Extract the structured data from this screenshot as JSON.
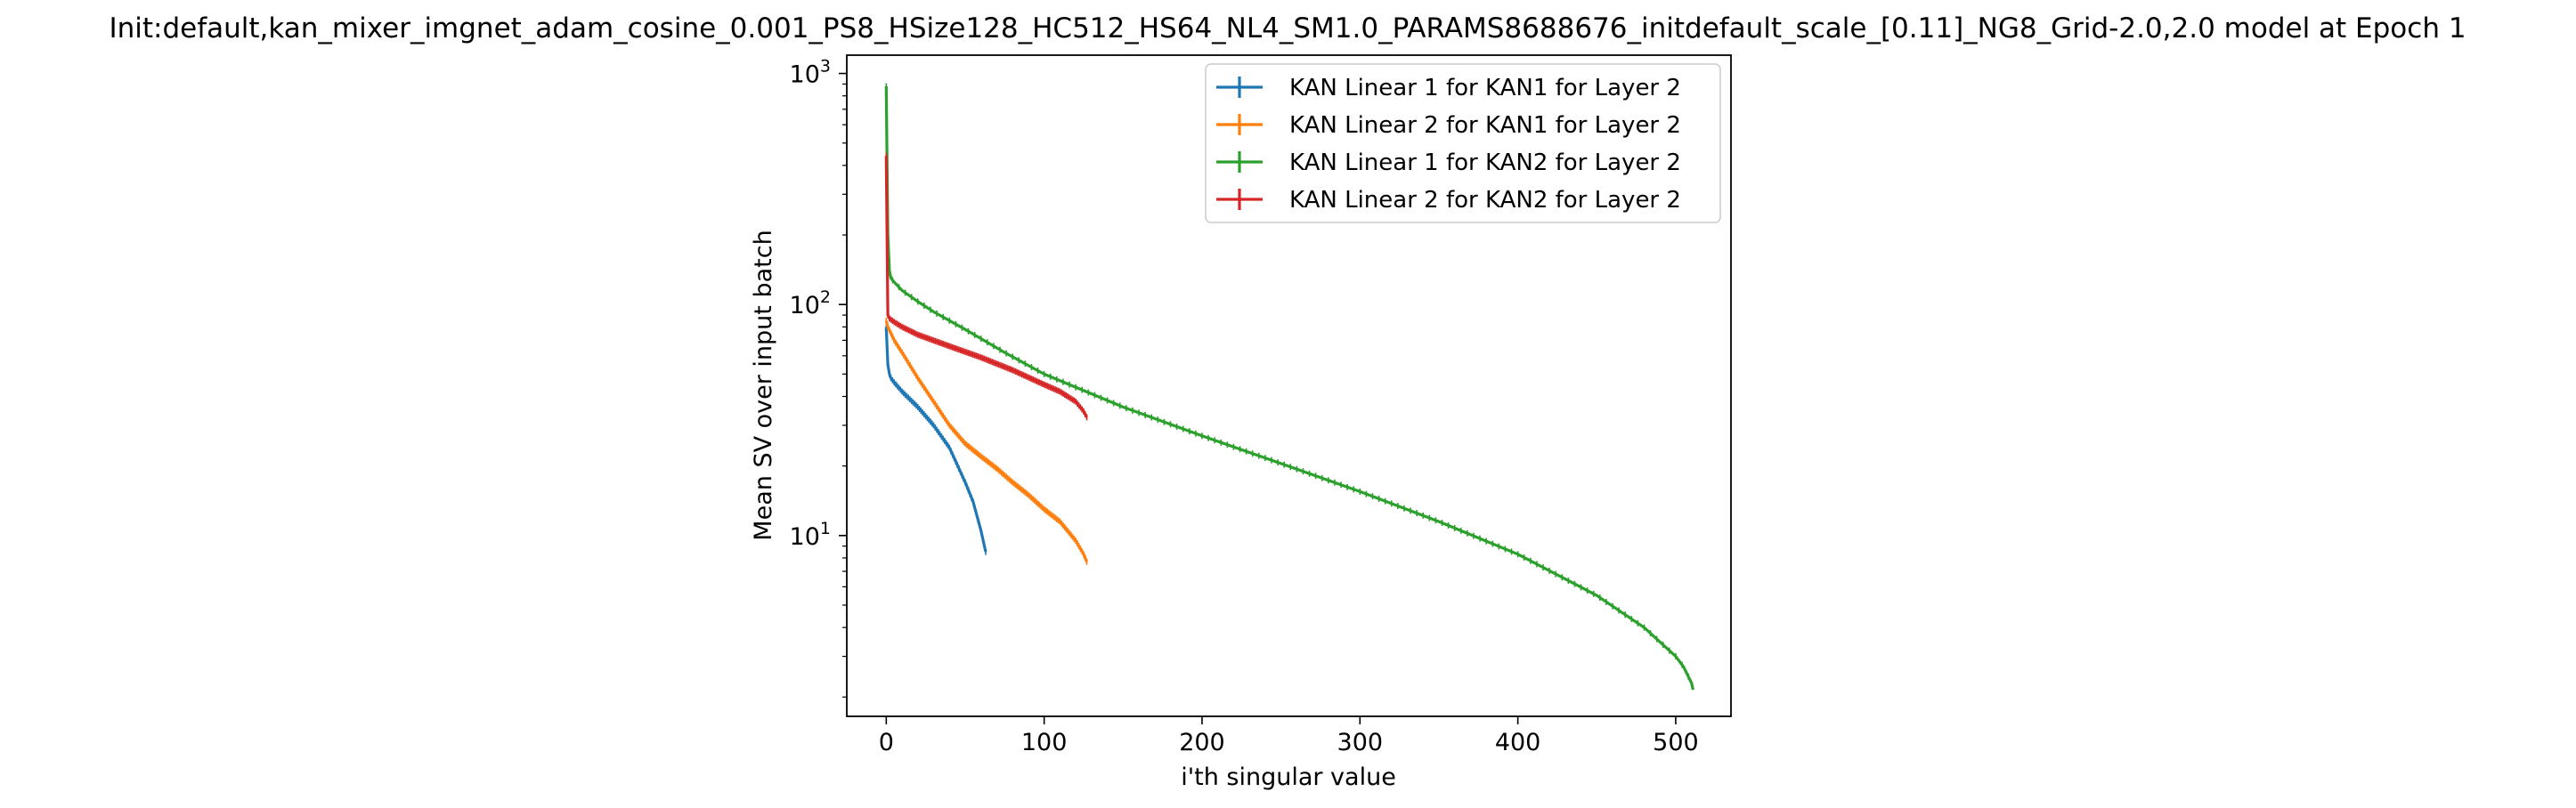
{
  "chart_data": {
    "type": "line",
    "title": "Init:default,kan_mixer_imgnet_adam_cosine_0.001_PS8_HSize128_HC512_HS64_NL4_SM1.0_PARAMS8688676_initdefault_scale_[0.11]_NG8_Grid-2.0,2.0 model at Epoch 1",
    "xlabel": "i'th singular value",
    "ylabel": "Mean SV over input batch",
    "xlim": [
      -25,
      535
    ],
    "ylim": [
      1.65,
      1200
    ],
    "yscale": "log",
    "grid": false,
    "legend_position": "top-right",
    "x_ticks": [
      {
        "value": 0,
        "label": "0"
      },
      {
        "value": 100,
        "label": "100"
      },
      {
        "value": 200,
        "label": "200"
      },
      {
        "value": 300,
        "label": "300"
      },
      {
        "value": 400,
        "label": "400"
      },
      {
        "value": 500,
        "label": "500"
      }
    ],
    "y_ticks": [
      {
        "value": 10,
        "base": "10",
        "exp": "1"
      },
      {
        "value": 100,
        "base": "10",
        "exp": "2"
      },
      {
        "value": 1000,
        "base": "10",
        "exp": "3"
      }
    ],
    "series": [
      {
        "name": "KAN Linear 1 for KAN1 for Layer 2",
        "color": "#1f77b4",
        "x": [
          0,
          1,
          2,
          3,
          5,
          10,
          20,
          30,
          40,
          50,
          55,
          60,
          63
        ],
        "y": [
          80,
          55,
          50,
          48,
          46,
          42,
          36,
          30,
          24,
          17,
          14,
          10.5,
          8.5
        ]
      },
      {
        "name": "KAN Linear 2 for KAN1 for Layer 2",
        "color": "#ff7f0e",
        "x": [
          0,
          1,
          3,
          5,
          10,
          20,
          30,
          40,
          50,
          60,
          70,
          80,
          90,
          100,
          110,
          120,
          125,
          127
        ],
        "y": [
          85,
          80,
          75,
          70,
          62,
          48,
          38,
          30,
          25,
          22,
          19.5,
          17,
          15,
          13,
          11.5,
          9.5,
          8.3,
          7.7
        ]
      },
      {
        "name": "KAN Linear 1 for KAN2 for Layer 2",
        "color": "#2ca02c",
        "x": [
          0,
          1,
          2,
          3,
          5,
          10,
          20,
          30,
          50,
          75,
          100,
          150,
          200,
          250,
          300,
          350,
          400,
          450,
          480,
          500,
          505,
          510,
          511
        ],
        "y": [
          880,
          200,
          140,
          130,
          125,
          115,
          103,
          93,
          78,
          62,
          50,
          36,
          27,
          20.5,
          15.5,
          11.5,
          8.3,
          5.5,
          4.0,
          3.0,
          2.7,
          2.3,
          2.15
        ]
      },
      {
        "name": "KAN Linear 2 for KAN2 for Layer 2",
        "color": "#d62728",
        "x": [
          0,
          1,
          2,
          3,
          5,
          10,
          20,
          40,
          60,
          80,
          100,
          110,
          120,
          125,
          127
        ],
        "y": [
          440,
          90,
          87,
          86,
          84,
          80,
          74,
          66,
          59,
          52,
          45,
          42,
          38,
          34.5,
          32.5
        ]
      }
    ]
  }
}
